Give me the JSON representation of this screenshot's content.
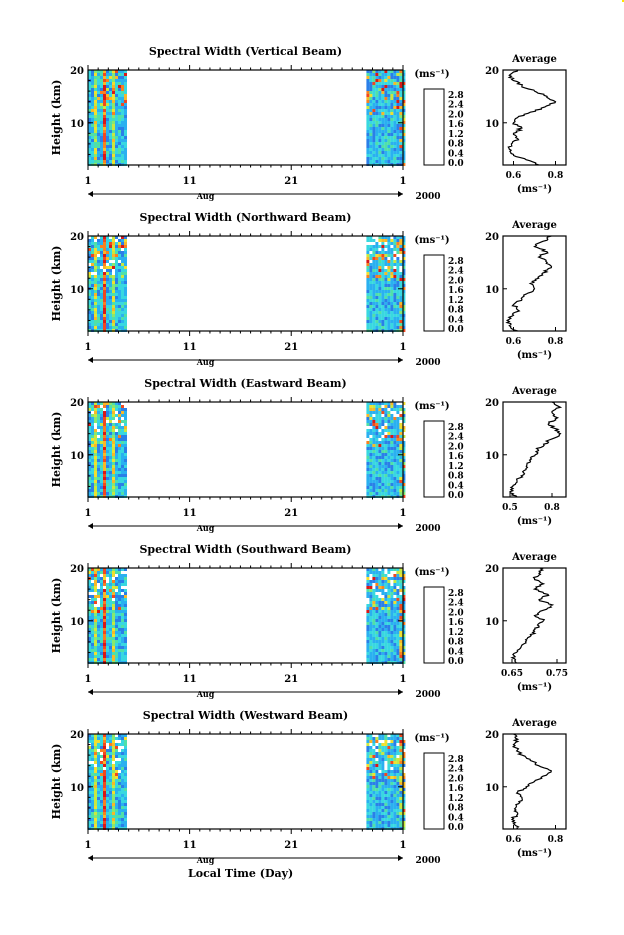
{
  "figure": {
    "xlabel": "Local Time (Day)",
    "month": "Aug",
    "year": "2000",
    "x_ticks": [
      "1",
      "11",
      "21",
      "1"
    ],
    "colorbar_unit": "(ms⁻¹)",
    "average_title": "Average",
    "average_unit": "(ms⁻¹)",
    "ylabel": "Height (km)",
    "y_ticks": [
      "10",
      "20"
    ],
    "colorbar_ticks": [
      "0.0",
      "0.4",
      "0.8",
      "1.2",
      "1.6",
      "2.0",
      "2.4",
      "2.8"
    ],
    "colorbar_colors": [
      "#3b3b7a",
      "#4a3fa0",
      "#3050d0",
      "#2a7fe8",
      "#2ab0f0",
      "#38d8e0",
      "#50e0a8",
      "#88e870",
      "#c8e840",
      "#f0e030",
      "#f8b828",
      "#f88020",
      "#f04820",
      "#d81818"
    ]
  },
  "chart_data": [
    {
      "type": "heatmap",
      "title": "Spectral Width (Vertical Beam)",
      "average_xticks": [
        "0.6",
        "0.8"
      ],
      "average_xlim": [
        0.55,
        0.85
      ],
      "ylim": [
        2,
        20
      ],
      "average_profile": [
        [
          0.72,
          2
        ],
        [
          0.66,
          3
        ],
        [
          0.6,
          4
        ],
        [
          0.58,
          5
        ],
        [
          0.59,
          6
        ],
        [
          0.62,
          7
        ],
        [
          0.6,
          8
        ],
        [
          0.64,
          9
        ],
        [
          0.6,
          10
        ],
        [
          0.62,
          11
        ],
        [
          0.68,
          12
        ],
        [
          0.75,
          13
        ],
        [
          0.8,
          14
        ],
        [
          0.76,
          15
        ],
        [
          0.7,
          16
        ],
        [
          0.64,
          17
        ],
        [
          0.6,
          18
        ],
        [
          0.58,
          19
        ],
        [
          0.62,
          20
        ]
      ]
    },
    {
      "type": "heatmap",
      "title": "Spectral Width (Northward Beam)",
      "average_xticks": [
        "0.6",
        "0.8"
      ],
      "average_xlim": [
        0.55,
        0.85
      ],
      "ylim": [
        2,
        20
      ],
      "average_profile": [
        [
          0.62,
          2
        ],
        [
          0.58,
          3
        ],
        [
          0.57,
          4
        ],
        [
          0.6,
          5
        ],
        [
          0.62,
          6
        ],
        [
          0.6,
          7
        ],
        [
          0.64,
          8
        ],
        [
          0.66,
          9
        ],
        [
          0.7,
          10
        ],
        [
          0.68,
          11
        ],
        [
          0.72,
          12
        ],
        [
          0.74,
          13
        ],
        [
          0.78,
          14
        ],
        [
          0.76,
          15
        ],
        [
          0.72,
          16
        ],
        [
          0.76,
          17
        ],
        [
          0.7,
          18
        ],
        [
          0.74,
          19
        ],
        [
          0.78,
          20
        ]
      ]
    },
    {
      "type": "heatmap",
      "title": "Spectral Width (Eastward Beam)",
      "average_xticks": [
        "0.5",
        "0.8"
      ],
      "average_xlim": [
        0.45,
        0.9
      ],
      "ylim": [
        2,
        20
      ],
      "average_profile": [
        [
          0.55,
          2
        ],
        [
          0.5,
          3
        ],
        [
          0.52,
          4
        ],
        [
          0.55,
          5
        ],
        [
          0.58,
          6
        ],
        [
          0.6,
          7
        ],
        [
          0.62,
          8
        ],
        [
          0.64,
          9
        ],
        [
          0.68,
          10
        ],
        [
          0.7,
          11
        ],
        [
          0.74,
          12
        ],
        [
          0.8,
          13
        ],
        [
          0.86,
          14
        ],
        [
          0.82,
          15
        ],
        [
          0.78,
          16
        ],
        [
          0.84,
          17
        ],
        [
          0.8,
          18
        ],
        [
          0.86,
          19
        ],
        [
          0.8,
          20
        ]
      ]
    },
    {
      "type": "heatmap",
      "title": "Spectral Width (Southward Beam)",
      "average_xticks": [
        "0.65",
        "0.75"
      ],
      "average_xlim": [
        0.63,
        0.77
      ],
      "ylim": [
        2,
        20
      ],
      "average_profile": [
        [
          0.66,
          2
        ],
        [
          0.65,
          3
        ],
        [
          0.66,
          4
        ],
        [
          0.67,
          5
        ],
        [
          0.68,
          6
        ],
        [
          0.69,
          7
        ],
        [
          0.7,
          8
        ],
        [
          0.71,
          9
        ],
        [
          0.72,
          10
        ],
        [
          0.7,
          11
        ],
        [
          0.72,
          12
        ],
        [
          0.74,
          13
        ],
        [
          0.71,
          14
        ],
        [
          0.73,
          15
        ],
        [
          0.7,
          16
        ],
        [
          0.72,
          17
        ],
        [
          0.7,
          18
        ],
        [
          0.71,
          19
        ],
        [
          0.72,
          20
        ]
      ]
    },
    {
      "type": "heatmap",
      "title": "Spectral Width (Westward Beam)",
      "average_xticks": [
        "0.6",
        "0.8"
      ],
      "average_xlim": [
        0.55,
        0.85
      ],
      "ylim": [
        2,
        20
      ],
      "average_profile": [
        [
          0.62,
          2
        ],
        [
          0.6,
          3
        ],
        [
          0.6,
          4
        ],
        [
          0.62,
          5
        ],
        [
          0.61,
          6
        ],
        [
          0.63,
          7
        ],
        [
          0.64,
          8
        ],
        [
          0.62,
          9
        ],
        [
          0.66,
          10
        ],
        [
          0.7,
          11
        ],
        [
          0.74,
          12
        ],
        [
          0.78,
          13
        ],
        [
          0.72,
          14
        ],
        [
          0.68,
          15
        ],
        [
          0.64,
          16
        ],
        [
          0.62,
          17
        ],
        [
          0.6,
          18
        ],
        [
          0.62,
          19
        ],
        [
          0.6,
          20
        ]
      ]
    }
  ]
}
